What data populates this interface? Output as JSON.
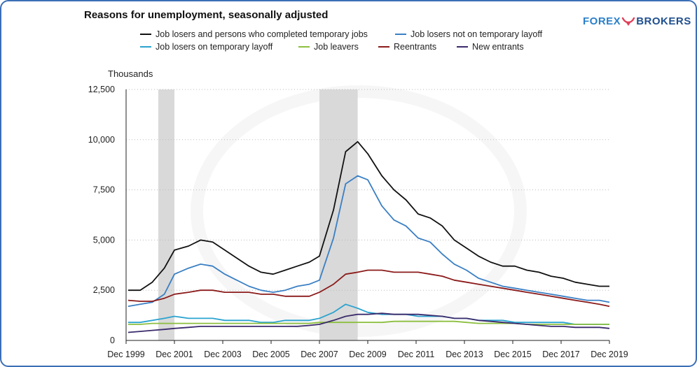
{
  "header": {
    "title": "Reasons for unemployment, seasonally adjusted",
    "logo_left": "FOREX",
    "logo_right": "BROKERS"
  },
  "legend": {
    "items": [
      {
        "label": "Job losers and persons who completed temporary jobs",
        "color": "#111111"
      },
      {
        "label": "Job losers not on temporary layoff",
        "color": "#3a7fc4"
      },
      {
        "label": "Job losers on temporary layoff",
        "color": "#2aa3cf"
      },
      {
        "label": "Job leavers",
        "color": "#8cbf3f"
      },
      {
        "label": "Reentrants",
        "color": "#8b1a1a"
      },
      {
        "label": "New entrants",
        "color": "#3b2a6b"
      }
    ]
  },
  "chart_data": {
    "type": "line",
    "title": "Reasons for unemployment, seasonally adjusted",
    "ylabel": "Thousands",
    "xlabel": "",
    "ylim": [
      0,
      12500
    ],
    "yticks": [
      0,
      2500,
      5000,
      7500,
      10000,
      12500
    ],
    "ytick_labels": [
      "0",
      "2,500",
      "5,000",
      "7,500",
      "10,000",
      "12,500"
    ],
    "xlim": [
      1999.917,
      2019.917
    ],
    "xticks": [
      1999.917,
      2001.917,
      2003.917,
      2005.917,
      2007.917,
      2009.917,
      2011.917,
      2013.917,
      2015.917,
      2017.917,
      2019.917
    ],
    "xtick_labels": [
      "Dec 1999",
      "Dec 2001",
      "Dec 2003",
      "Dec 2005",
      "Dec 2007",
      "Dec 2009",
      "Dec 2011",
      "Dec 2013",
      "Dec 2015",
      "Dec 2017",
      "Dec 2019"
    ],
    "grid": "horizontal dotted",
    "legend_position": "top",
    "recessions": [
      [
        2001.25,
        2001.917
      ],
      [
        2007.917,
        2009.5
      ]
    ],
    "x": [
      2000.0,
      2000.5,
      2001.0,
      2001.5,
      2001.917,
      2002.5,
      2003.0,
      2003.5,
      2004.0,
      2004.5,
      2005.0,
      2005.5,
      2006.0,
      2006.5,
      2007.0,
      2007.5,
      2007.917,
      2008.5,
      2009.0,
      2009.5,
      2009.917,
      2010.5,
      2011.0,
      2011.5,
      2012.0,
      2012.5,
      2013.0,
      2013.5,
      2014.0,
      2014.5,
      2015.0,
      2015.5,
      2016.0,
      2016.5,
      2017.0,
      2017.5,
      2018.0,
      2018.5,
      2019.0,
      2019.5,
      2019.917
    ],
    "series": [
      {
        "name": "Job losers and persons who completed temporary jobs",
        "color": "#111111",
        "values": [
          2500,
          2500,
          2900,
          3600,
          4500,
          4700,
          5000,
          4900,
          4500,
          4100,
          3700,
          3400,
          3300,
          3500,
          3700,
          3900,
          4200,
          6500,
          9400,
          9900,
          9300,
          8200,
          7500,
          7000,
          6300,
          6100,
          5700,
          5000,
          4600,
          4200,
          3900,
          3700,
          3700,
          3500,
          3400,
          3200,
          3100,
          2900,
          2800,
          2700,
          2700
        ]
      },
      {
        "name": "Job losers not on temporary layoff",
        "color": "#3a7fc4",
        "values": [
          1700,
          1800,
          1900,
          2300,
          3300,
          3600,
          3800,
          3700,
          3300,
          3000,
          2700,
          2500,
          2400,
          2500,
          2700,
          2800,
          3000,
          5100,
          7800,
          8200,
          8000,
          6700,
          6000,
          5700,
          5100,
          4900,
          4300,
          3800,
          3500,
          3100,
          2900,
          2700,
          2600,
          2500,
          2400,
          2300,
          2200,
          2100,
          2000,
          2000,
          1900
        ]
      },
      {
        "name": "Job losers on temporary layoff",
        "color": "#2aa3cf",
        "values": [
          900,
          900,
          1000,
          1100,
          1200,
          1100,
          1100,
          1100,
          1000,
          1000,
          1000,
          900,
          900,
          1000,
          1000,
          1000,
          1100,
          1400,
          1800,
          1600,
          1400,
          1300,
          1300,
          1300,
          1200,
          1200,
          1200,
          1100,
          1100,
          1000,
          1000,
          1000,
          900,
          900,
          900,
          900,
          900,
          800,
          800,
          800,
          800
        ]
      },
      {
        "name": "Job leavers",
        "color": "#8cbf3f",
        "values": [
          800,
          800,
          850,
          850,
          850,
          850,
          850,
          850,
          850,
          850,
          850,
          850,
          850,
          850,
          850,
          850,
          900,
          900,
          900,
          900,
          900,
          900,
          950,
          950,
          950,
          950,
          950,
          950,
          900,
          850,
          850,
          850,
          850,
          800,
          800,
          800,
          800,
          800,
          800,
          800,
          800
        ]
      },
      {
        "name": "Reentrants",
        "color": "#8b1a1a",
        "values": [
          2000,
          1950,
          1950,
          2100,
          2300,
          2400,
          2500,
          2500,
          2400,
          2400,
          2400,
          2300,
          2300,
          2200,
          2200,
          2200,
          2400,
          2800,
          3300,
          3400,
          3500,
          3500,
          3400,
          3400,
          3400,
          3300,
          3200,
          3000,
          2900,
          2800,
          2700,
          2600,
          2500,
          2400,
          2300,
          2200,
          2100,
          2000,
          1900,
          1800,
          1700
        ]
      },
      {
        "name": "New entrants",
        "color": "#3b2a6b",
        "values": [
          400,
          450,
          500,
          550,
          600,
          650,
          700,
          700,
          700,
          700,
          700,
          700,
          700,
          700,
          700,
          750,
          800,
          1000,
          1200,
          1300,
          1300,
          1350,
          1300,
          1300,
          1300,
          1250,
          1200,
          1100,
          1100,
          1000,
          950,
          900,
          850,
          800,
          750,
          700,
          700,
          650,
          650,
          650,
          600
        ]
      }
    ]
  }
}
